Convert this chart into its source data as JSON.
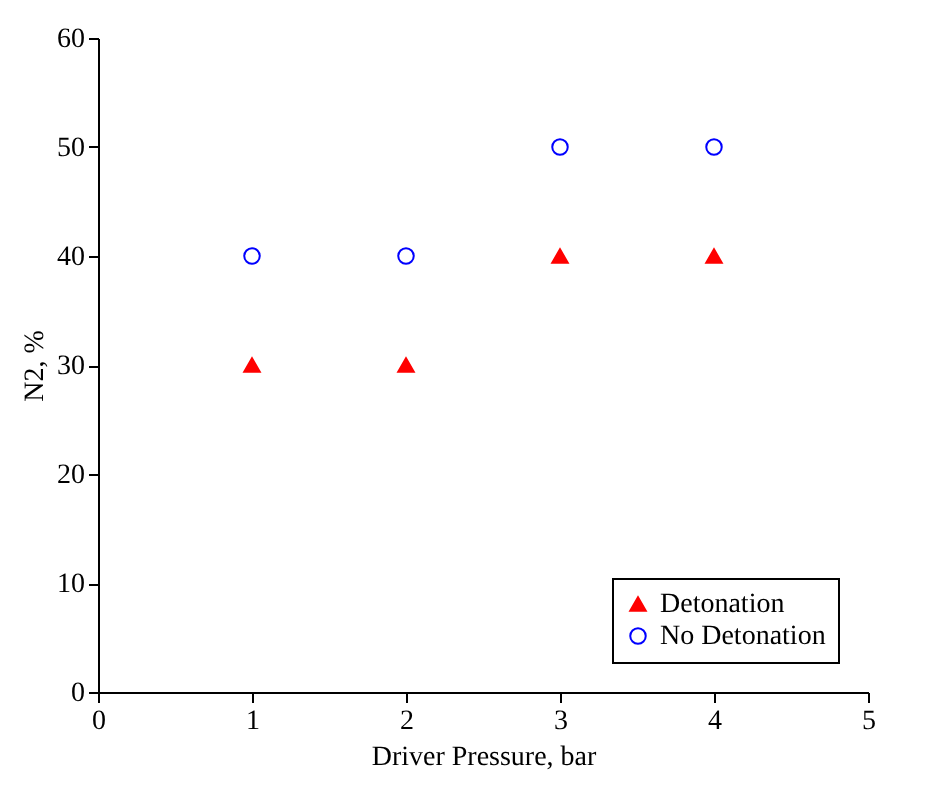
{
  "chart_data": {
    "type": "scatter",
    "xlabel": "Driver Pressure, bar",
    "ylabel": "N2, %",
    "xlim": [
      0,
      5
    ],
    "xticks": [
      0,
      1,
      2,
      3,
      4,
      5
    ],
    "ylim": [
      0,
      60
    ],
    "yticks": [
      0,
      10,
      20,
      30,
      40,
      50,
      60
    ],
    "grid": false,
    "legend": "bottom right",
    "series": [
      {
        "name": "Detonation",
        "color": "#ff0000",
        "marker": "triangle",
        "x": [
          1,
          2,
          3,
          4
        ],
        "values": [
          30,
          30,
          40,
          40
        ]
      },
      {
        "name": "No Detonation",
        "color": "#0000ff",
        "marker": "circle",
        "x": [
          1,
          2,
          3,
          4
        ],
        "values": [
          40,
          40,
          50,
          50
        ]
      }
    ]
  }
}
